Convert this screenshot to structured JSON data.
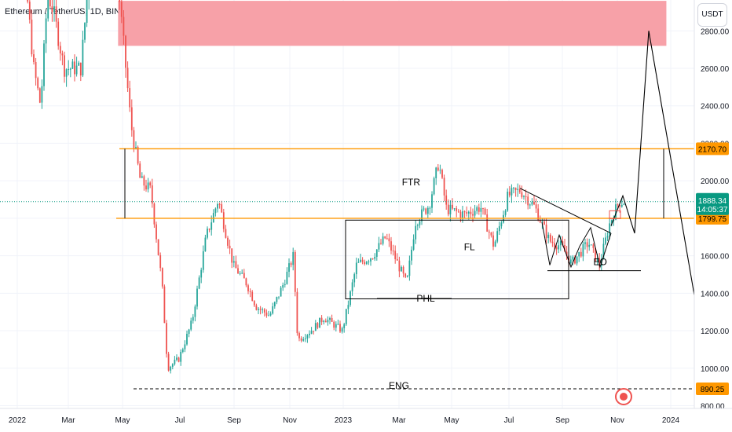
{
  "header": {
    "symbol_title": "Ethereum / TetherUS, 1D, BINANCE",
    "currency_button": "USDT"
  },
  "colors": {
    "up": "#26a69a",
    "down": "#ef5350",
    "orange": "#ff9800",
    "zone": "#f7a1a8",
    "price_line": "#089981",
    "price_tag": "#089981",
    "axis_text": "#131722",
    "trend": "#000000"
  },
  "chart_data": {
    "type": "candlestick",
    "xlabel": "",
    "ylabel": "",
    "x_ticks": [
      "2022",
      "Mar",
      "May",
      "Jul",
      "Sep",
      "Nov",
      "2023",
      "Mar",
      "May",
      "Jul",
      "Sep",
      "Nov",
      "2024"
    ],
    "y_ticks": [
      800,
      1000,
      1200,
      1400,
      1600,
      1800,
      2000,
      2200,
      2400,
      2600,
      2800
    ],
    "y_tick_labels": [
      "800.00",
      "1000.00",
      "1200.00",
      "1400.00",
      "1600.00",
      "1800.00",
      "2000.00",
      "2200.00",
      "2400.00",
      "2600.00",
      "2800.00"
    ],
    "ylim": [
      790,
      3100
    ],
    "price_levels": [
      {
        "name": "upper-resistance",
        "value": 2170.7,
        "label": "2170.70"
      },
      {
        "name": "lower-support",
        "value": 1799.75,
        "label": "1799.75"
      },
      {
        "name": "eng-level",
        "value": 890.25,
        "label": "890.25"
      }
    ],
    "current_price": {
      "value": 1888.34,
      "label": "1888.34",
      "countdown": "14:05:37"
    },
    "zone": {
      "x_start": "2022-04-26",
      "x_end": "2023-12-27",
      "y_low": 2720,
      "y_high": 2960
    },
    "annotations": [
      {
        "text": "FTR",
        "x": "2023-03-15",
        "y": 1975
      },
      {
        "text": "FL",
        "x": "2023-05-20",
        "y": 1630
      },
      {
        "text": "PHL",
        "x": "2023-04-01",
        "y": 1355
      },
      {
        "text": "EO",
        "x": "2023-10-13",
        "y": 1550
      },
      {
        "text": "ENG",
        "x": "2023-03-01",
        "y": 890
      }
    ],
    "candles_ohlc": [
      {
        "date": "2022-01-10",
        "close": 3100
      },
      {
        "date": "2022-01-20",
        "close": 2600
      },
      {
        "date": "2022-01-28",
        "close": 2400
      },
      {
        "date": "2022-02-05",
        "close": 3000
      },
      {
        "date": "2022-02-12",
        "close": 2900
      },
      {
        "date": "2022-02-24",
        "close": 2600
      },
      {
        "date": "2022-03-05",
        "close": 2600
      },
      {
        "date": "2022-03-15",
        "close": 2600
      },
      {
        "date": "2022-03-30",
        "close": 3400
      },
      {
        "date": "2022-04-10",
        "close": 3200
      },
      {
        "date": "2022-04-25",
        "close": 3100
      },
      {
        "date": "2022-05-10",
        "close": 2300
      },
      {
        "date": "2022-05-20",
        "close": 2000
      },
      {
        "date": "2022-05-31",
        "close": 1950
      },
      {
        "date": "2022-06-12",
        "close": 1450
      },
      {
        "date": "2022-06-18",
        "close": 1000
      },
      {
        "date": "2022-06-30",
        "close": 1050
      },
      {
        "date": "2022-07-15",
        "close": 1250
      },
      {
        "date": "2022-07-31",
        "close": 1700
      },
      {
        "date": "2022-08-14",
        "close": 1900
      },
      {
        "date": "2022-08-31",
        "close": 1550
      },
      {
        "date": "2022-09-15",
        "close": 1450
      },
      {
        "date": "2022-09-25",
        "close": 1330
      },
      {
        "date": "2022-10-10",
        "close": 1280
      },
      {
        "date": "2022-10-25",
        "close": 1450
      },
      {
        "date": "2022-11-05",
        "close": 1600
      },
      {
        "date": "2022-11-10",
        "close": 1150
      },
      {
        "date": "2022-11-25",
        "close": 1200
      },
      {
        "date": "2022-12-10",
        "close": 1270
      },
      {
        "date": "2022-12-31",
        "close": 1200
      },
      {
        "date": "2023-01-15",
        "close": 1550
      },
      {
        "date": "2023-02-01",
        "close": 1600
      },
      {
        "date": "2023-02-15",
        "close": 1700
      },
      {
        "date": "2023-03-10",
        "close": 1450
      },
      {
        "date": "2023-03-20",
        "close": 1780
      },
      {
        "date": "2023-04-05",
        "close": 1870
      },
      {
        "date": "2023-04-16",
        "close": 2100
      },
      {
        "date": "2023-04-25",
        "close": 1850
      },
      {
        "date": "2023-05-15",
        "close": 1820
      },
      {
        "date": "2023-06-01",
        "close": 1860
      },
      {
        "date": "2023-06-15",
        "close": 1650
      },
      {
        "date": "2023-06-30",
        "close": 1920
      },
      {
        "date": "2023-07-14",
        "close": 1950
      },
      {
        "date": "2023-07-31",
        "close": 1860
      },
      {
        "date": "2023-08-17",
        "close": 1680
      },
      {
        "date": "2023-08-31",
        "close": 1650
      },
      {
        "date": "2023-09-11",
        "close": 1560
      },
      {
        "date": "2023-09-30",
        "close": 1670
      },
      {
        "date": "2023-10-12",
        "close": 1550
      },
      {
        "date": "2023-10-24",
        "close": 1780
      },
      {
        "date": "2023-11-03",
        "close": 1888
      }
    ]
  }
}
